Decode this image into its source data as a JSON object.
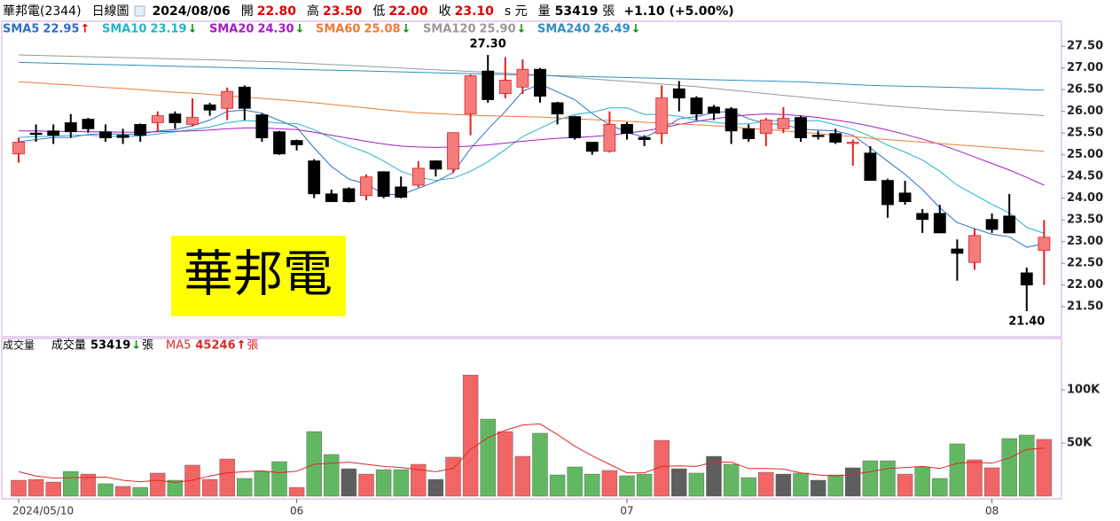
{
  "header": {
    "name": "華邦電(2344)",
    "period": "日線圖",
    "date": "2024/08/06",
    "fields": [
      {
        "label": "開",
        "value": "22.80"
      },
      {
        "label": "高",
        "value": "23.50"
      },
      {
        "label": "低",
        "value": "22.00"
      },
      {
        "label": "收",
        "value": "23.10"
      }
    ],
    "unit": "s 元",
    "volume_label": "量",
    "volume": "53419",
    "volume_unit": "張",
    "change": "+1.10 (+5.00%)"
  },
  "label_box": "華邦電",
  "chart_data": [
    {
      "type": "candlestick",
      "up_color": "#f47c7c",
      "up_edge": "#e02020",
      "down_color": "#000000",
      "ylim": [
        20.85,
        27.75
      ],
      "yticks": [
        {
          "value": 21.5,
          "label": "21.50"
        },
        {
          "value": 22,
          "label": "22.00"
        },
        {
          "value": 22.5,
          "label": "22.50"
        },
        {
          "value": 23,
          "label": "23.00"
        },
        {
          "value": 23.5,
          "label": "23.50"
        },
        {
          "value": 24,
          "label": "24.00"
        },
        {
          "value": 24.5,
          "label": "24.50"
        },
        {
          "value": 25,
          "label": "25.00"
        },
        {
          "value": 25.5,
          "label": "25.50"
        },
        {
          "value": 26,
          "label": "26.00"
        },
        {
          "value": 26.5,
          "label": "26.50"
        },
        {
          "value": 27,
          "label": "27.00"
        },
        {
          "value": 27.5,
          "label": "27.50"
        }
      ],
      "candles": {
        "open": [
          25.02,
          25.5,
          25.55,
          25.74,
          25.82,
          25.53,
          25.45,
          25.7,
          25.74,
          25.94,
          25.7,
          26.15,
          26.07,
          26.56,
          25.92,
          25.53,
          25.33,
          24.86,
          24.1,
          24.22,
          24.06,
          24.61,
          24.26,
          24.3,
          24.86,
          24.67,
          25.94,
          26.93,
          26.41,
          26.56,
          26.97,
          26.2,
          25.88,
          25.29,
          25.08,
          25.7,
          25.4,
          25.49,
          26.52,
          26.31,
          26.1,
          26.06,
          25.6,
          25.49,
          25.6,
          25.86,
          25.45,
          25.49,
          25.27,
          25.04,
          24.41,
          24.12,
          23.65,
          23.65,
          22.83,
          22.52,
          23.51,
          23.59,
          22.28,
          22.8
        ],
        "high": [
          25.39,
          25.7,
          25.7,
          25.94,
          25.85,
          25.7,
          25.6,
          25.72,
          26.0,
          26.0,
          26.3,
          26.2,
          26.55,
          26.6,
          25.95,
          25.55,
          25.35,
          24.9,
          24.2,
          24.25,
          24.55,
          24.62,
          24.5,
          24.85,
          24.87,
          25.51,
          26.85,
          27.3,
          27.25,
          27.2,
          27.0,
          26.22,
          25.9,
          25.3,
          26.0,
          25.75,
          25.45,
          26.6,
          26.7,
          26.35,
          26.15,
          26.1,
          25.7,
          25.85,
          26.1,
          25.9,
          25.55,
          25.6,
          25.35,
          25.2,
          24.45,
          24.4,
          23.75,
          23.85,
          23.05,
          23.3,
          23.65,
          24.1,
          22.4,
          23.5
        ],
        "low": [
          24.82,
          25.3,
          25.25,
          25.39,
          25.51,
          25.3,
          25.25,
          25.3,
          25.55,
          25.6,
          25.65,
          25.9,
          25.8,
          25.8,
          25.3,
          25.0,
          25.1,
          24.0,
          23.92,
          23.9,
          23.95,
          24.0,
          24.0,
          24.25,
          24.5,
          24.58,
          25.45,
          26.2,
          26.3,
          26.4,
          26.2,
          25.7,
          25.35,
          25.0,
          25.05,
          25.35,
          25.2,
          25.25,
          26.0,
          25.8,
          25.8,
          25.25,
          25.3,
          25.2,
          25.5,
          25.3,
          25.35,
          25.25,
          24.75,
          24.4,
          23.55,
          23.85,
          23.2,
          23.2,
          22.1,
          22.35,
          23.2,
          23.2,
          21.4,
          22.0
        ],
        "close": [
          25.29,
          25.48,
          25.45,
          25.53,
          25.6,
          25.39,
          25.4,
          25.45,
          25.9,
          25.74,
          25.86,
          26.03,
          26.46,
          26.07,
          25.39,
          25.02,
          25.23,
          24.1,
          23.92,
          23.92,
          24.49,
          24.04,
          24.02,
          24.69,
          24.67,
          25.51,
          26.82,
          26.27,
          26.72,
          26.97,
          26.35,
          25.94,
          25.39,
          25.08,
          25.7,
          25.49,
          25.35,
          26.31,
          26.31,
          25.94,
          25.96,
          25.55,
          25.37,
          25.8,
          25.84,
          25.39,
          25.43,
          25.29,
          25.29,
          24.41,
          23.85,
          23.92,
          23.51,
          23.2,
          22.73,
          23.14,
          23.28,
          23.2,
          22.0,
          23.1
        ]
      },
      "annotations": [
        {
          "value": 27.3,
          "label": "27.30"
        },
        {
          "value": 21.4,
          "label": "21.40"
        }
      ],
      "series": [
        {
          "name": "SMA5",
          "color": "#2f6fc4",
          "legend_label": "22.95",
          "legend_arrow": "↑",
          "values": [
            25.3,
            25.35,
            25.4,
            25.4,
            25.47,
            25.49,
            25.47,
            25.47,
            25.55,
            25.58,
            25.67,
            25.8,
            26.0,
            26.03,
            25.96,
            25.79,
            25.63,
            25.16,
            24.73,
            24.44,
            24.33,
            24.09,
            24.08,
            24.23,
            24.38,
            24.59,
            25.14,
            25.59,
            26.0,
            26.46,
            26.63,
            26.45,
            26.27,
            25.95,
            25.69,
            25.52,
            25.4,
            25.59,
            25.83,
            25.88,
            25.97,
            26.01,
            25.83,
            25.72,
            25.7,
            25.59,
            25.57,
            25.55,
            25.45,
            25.16,
            24.85,
            24.55,
            24.2,
            23.78,
            23.44,
            23.3,
            23.17,
            23.11,
            22.87,
            22.95
          ]
        },
        {
          "name": "SMA10",
          "color": "#22b5c5",
          "legend_label": "23.19",
          "legend_arrow": "↓",
          "values": [
            25.4,
            25.42,
            25.43,
            25.45,
            25.45,
            25.43,
            25.42,
            25.43,
            25.48,
            25.53,
            25.58,
            25.64,
            25.74,
            25.79,
            25.77,
            25.73,
            25.72,
            25.58,
            25.38,
            25.2,
            25.06,
            24.86,
            24.62,
            24.48,
            24.41,
            24.46,
            24.62,
            24.84,
            25.12,
            25.42,
            25.61,
            25.8,
            25.93,
            25.98,
            26.08,
            26.08,
            25.93,
            25.93,
            25.89,
            25.79,
            25.75,
            25.71,
            25.71,
            25.78,
            25.79,
            25.78,
            25.79,
            25.69,
            25.59,
            25.43,
            25.22,
            25.06,
            24.88,
            24.62,
            24.3,
            24.08,
            23.86,
            23.66,
            23.33,
            23.19
          ]
        },
        {
          "name": "SMA20",
          "color": "#a21cc4",
          "legend_label": "24.30",
          "legend_arrow": "↓",
          "values": [
            25.55,
            25.55,
            25.54,
            25.54,
            25.53,
            25.53,
            25.52,
            25.52,
            25.53,
            25.54,
            25.55,
            25.57,
            25.6,
            25.62,
            25.62,
            25.6,
            25.58,
            25.52,
            25.45,
            25.38,
            25.31,
            25.25,
            25.2,
            25.18,
            25.17,
            25.18,
            25.2,
            25.23,
            25.27,
            25.31,
            25.35,
            25.38,
            25.4,
            25.42,
            25.45,
            25.5,
            25.55,
            25.62,
            25.7,
            25.77,
            25.83,
            25.88,
            25.92,
            25.94,
            25.93,
            25.9,
            25.86,
            25.8,
            25.74,
            25.66,
            25.57,
            25.47,
            25.36,
            25.24,
            25.1,
            24.95,
            24.8,
            24.65,
            24.48,
            24.3
          ]
        },
        {
          "name": "SMA60",
          "color": "#f07a34",
          "legend_label": "25.08",
          "legend_arrow": "↓",
          "values": [
            26.68,
            26.66,
            26.63,
            26.61,
            26.58,
            26.55,
            26.53,
            26.5,
            26.47,
            26.44,
            26.42,
            26.39,
            26.36,
            26.33,
            26.3,
            26.27,
            26.24,
            26.2,
            26.16,
            26.12,
            26.08,
            26.04,
            26.0,
            25.97,
            25.95,
            25.93,
            25.91,
            25.9,
            25.89,
            25.88,
            25.87,
            25.85,
            25.83,
            25.81,
            25.79,
            25.77,
            25.75,
            25.73,
            25.71,
            25.69,
            25.67,
            25.64,
            25.61,
            25.58,
            25.55,
            25.52,
            25.49,
            25.45,
            25.42,
            25.38,
            25.35,
            25.32,
            25.29,
            25.26,
            25.23,
            25.2,
            25.17,
            25.14,
            25.11,
            25.08
          ]
        },
        {
          "name": "SMA120",
          "color": "#999999",
          "legend_label": "25.90",
          "legend_arrow": "↓",
          "values": [
            27.3,
            27.29,
            27.28,
            27.27,
            27.26,
            27.25,
            27.24,
            27.23,
            27.22,
            27.21,
            27.2,
            27.19,
            27.18,
            27.16,
            27.15,
            27.14,
            27.12,
            27.1,
            27.08,
            27.06,
            27.04,
            27.02,
            27.0,
            26.98,
            26.96,
            26.94,
            26.92,
            26.9,
            26.88,
            26.86,
            26.84,
            26.81,
            26.78,
            26.75,
            26.72,
            26.69,
            26.66,
            26.63,
            26.6,
            26.57,
            26.53,
            26.49,
            26.45,
            26.41,
            26.37,
            26.33,
            26.29,
            26.25,
            26.21,
            26.17,
            26.13,
            26.1,
            26.07,
            26.04,
            26.02,
            26.0,
            25.98,
            25.95,
            25.93,
            25.9
          ]
        },
        {
          "name": "SMA240",
          "color": "#2e8fc4",
          "legend_label": "26.49",
          "legend_arrow": "↓",
          "values": [
            27.13,
            27.12,
            27.11,
            27.1,
            27.09,
            27.08,
            27.07,
            27.06,
            27.05,
            27.04,
            27.03,
            27.02,
            27.01,
            27.0,
            26.99,
            26.98,
            26.97,
            26.96,
            26.95,
            26.94,
            26.93,
            26.92,
            26.91,
            26.9,
            26.89,
            26.88,
            26.87,
            26.86,
            26.85,
            26.84,
            26.83,
            26.82,
            26.81,
            26.8,
            26.79,
            26.78,
            26.77,
            26.76,
            26.75,
            26.74,
            26.73,
            26.72,
            26.71,
            26.7,
            26.69,
            26.68,
            26.66,
            26.64,
            26.62,
            26.6,
            26.59,
            26.58,
            26.57,
            26.56,
            26.55,
            26.54,
            26.53,
            26.52,
            26.5,
            26.49
          ]
        }
      ]
    },
    {
      "type": "bar",
      "title": "成交量",
      "categories": [
        "2024/05/10",
        null,
        null,
        null,
        null,
        null,
        null,
        null,
        null,
        null,
        null,
        null,
        null,
        null,
        null,
        null,
        "06",
        null,
        null,
        null,
        null,
        null,
        null,
        null,
        null,
        null,
        null,
        null,
        null,
        null,
        null,
        null,
        null,
        null,
        null,
        "07",
        null,
        null,
        null,
        null,
        null,
        null,
        null,
        null,
        null,
        null,
        null,
        null,
        null,
        null,
        null,
        null,
        null,
        null,
        null,
        null,
        "08",
        null,
        null,
        null
      ],
      "ylim": [
        0,
        135000
      ],
      "yticks": [
        {
          "value": 50000,
          "label": "50K"
        },
        {
          "value": 100000,
          "label": "100K"
        }
      ],
      "series": [
        {
          "name": "成交量",
          "legend_label": "53419",
          "legend_arrow": "↓",
          "unit": "張",
          "values": [
            15000,
            15800,
            13300,
            23300,
            20800,
            11700,
            9200,
            8300,
            21700,
            15000,
            29200,
            15800,
            35000,
            16700,
            23300,
            32500,
            8300,
            60800,
            39200,
            25800,
            20800,
            25000,
            25000,
            30000,
            15800,
            36700,
            114000,
            72500,
            60800,
            37500,
            59200,
            20000,
            27500,
            20800,
            24200,
            19200,
            20800,
            52500,
            25800,
            21700,
            37500,
            30000,
            17500,
            22500,
            20800,
            21700,
            15000,
            20000,
            26700,
            33300,
            33300,
            20800,
            27500,
            16700,
            49200,
            34200,
            26700,
            54200,
            57500,
            53419
          ],
          "colors": [
            "#f26565",
            "#f26565",
            "#f26565",
            "#62b862",
            "#f26565",
            "#62b862",
            "#f26565",
            "#62b862",
            "#f26565",
            "#62b862",
            "#f26565",
            "#f26565",
            "#f26565",
            "#62b862",
            "#62b862",
            "#62b862",
            "#f26565",
            "#62b862",
            "#62b862",
            "#5e5e5e",
            "#f26565",
            "#62b862",
            "#62b862",
            "#f26565",
            "#5e5e5e",
            "#f26565",
            "#f26565",
            "#62b862",
            "#f26565",
            "#f26565",
            "#62b862",
            "#62b862",
            "#62b862",
            "#62b862",
            "#f26565",
            "#62b862",
            "#62b862",
            "#f26565",
            "#5e5e5e",
            "#62b862",
            "#5e5e5e",
            "#62b862",
            "#62b862",
            "#f26565",
            "#5e5e5e",
            "#62b862",
            "#5e5e5e",
            "#62b862",
            "#5e5e5e",
            "#62b862",
            "#62b862",
            "#f26565",
            "#62b862",
            "#62b862",
            "#62b862",
            "#f26565",
            "#f26565",
            "#62b862",
            "#62b862",
            "#f26565"
          ]
        },
        {
          "name": "MA5",
          "color": "#e02828",
          "legend_label": "45246",
          "legend_arrow": "↑",
          "unit": "張",
          "values": [
            23000,
            19000,
            17000,
            17500,
            17600,
            18000,
            15000,
            13500,
            15000,
            13000,
            15000,
            19000,
            22000,
            23000,
            24000,
            22000,
            23500,
            30000,
            31000,
            32000,
            30000,
            28000,
            27000,
            25000,
            23000,
            26000,
            44000,
            55000,
            62000,
            67000,
            68000,
            58000,
            47000,
            38000,
            30000,
            22000,
            22000,
            28000,
            28500,
            28000,
            32000,
            32000,
            26000,
            26000,
            25500,
            22000,
            20000,
            19000,
            20500,
            23000,
            26000,
            27000,
            28000,
            26000,
            31000,
            32000,
            31000,
            36000,
            44000,
            45246
          ]
        }
      ]
    }
  ]
}
